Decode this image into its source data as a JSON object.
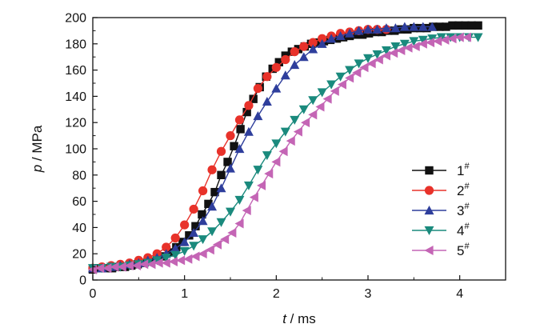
{
  "chart_data": {
    "type": "line",
    "title": "",
    "xlabel": {
      "var": "t",
      "unit": " / ms"
    },
    "ylabel": {
      "var": "p",
      "unit": " / MPa"
    },
    "xlim": [
      0,
      4.5
    ],
    "ylim": [
      0,
      200
    ],
    "xticks": [
      "0",
      "1",
      "2",
      "3",
      "4"
    ],
    "yticks": [
      "0",
      "20",
      "40",
      "60",
      "80",
      "100",
      "120",
      "140",
      "160",
      "180",
      "200"
    ],
    "grid": false,
    "legend_position": "right",
    "series": [
      {
        "name": "1",
        "sup": "#",
        "color": "#111111",
        "marker": "square",
        "x": [
          0.0,
          0.07,
          0.14,
          0.21,
          0.28,
          0.35,
          0.42,
          0.49,
          0.56,
          0.63,
          0.7,
          0.77,
          0.84,
          0.91,
          0.98,
          1.05,
          1.12,
          1.19,
          1.26,
          1.33,
          1.4,
          1.47,
          1.54,
          1.61,
          1.68,
          1.75,
          1.82,
          1.89,
          1.96,
          2.03,
          2.1,
          2.17,
          2.24,
          2.31,
          2.38,
          2.45,
          2.52,
          2.59,
          2.66,
          2.73,
          2.8,
          2.87,
          2.94,
          3.01,
          3.08,
          3.15,
          3.22,
          3.29,
          3.36,
          3.43,
          3.5,
          3.57,
          3.64,
          3.71,
          3.78,
          3.85,
          3.92,
          3.99,
          4.06,
          4.13,
          4.2
        ],
        "y": [
          8,
          9,
          9,
          9,
          10,
          10,
          11,
          12,
          13,
          14,
          16,
          18,
          21,
          25,
          29,
          34,
          41,
          50,
          58,
          67,
          80,
          90,
          102,
          115,
          128,
          138,
          147,
          155,
          161,
          166,
          171,
          174,
          176,
          178,
          180,
          181,
          182,
          183,
          184,
          185,
          186,
          187,
          187,
          188,
          189,
          189,
          190,
          190,
          191,
          191,
          192,
          192,
          192,
          193,
          193,
          193,
          194,
          194,
          194,
          194,
          194
        ]
      },
      {
        "name": "2",
        "sup": "#",
        "color": "#e8322a",
        "marker": "circle",
        "x": [
          0.0,
          0.1,
          0.2,
          0.3,
          0.4,
          0.5,
          0.6,
          0.7,
          0.8,
          0.9,
          1.0,
          1.1,
          1.2,
          1.3,
          1.4,
          1.5,
          1.6,
          1.7,
          1.8,
          1.9,
          2.0,
          2.1,
          2.2,
          2.3,
          2.4,
          2.5,
          2.6,
          2.7,
          2.8,
          2.9,
          3.0,
          3.1,
          3.2
        ],
        "y": [
          9,
          10,
          11,
          12,
          13,
          15,
          17,
          20,
          25,
          32,
          42,
          54,
          68,
          84,
          98,
          110,
          122,
          133,
          146,
          155,
          162,
          168,
          174,
          178,
          181,
          184,
          186,
          188,
          189,
          190,
          191,
          191,
          191
        ]
      },
      {
        "name": "3",
        "sup": "#",
        "color": "#2e3e9c",
        "marker": "triangle-up",
        "x": [
          0.0,
          0.1,
          0.2,
          0.3,
          0.4,
          0.5,
          0.6,
          0.7,
          0.8,
          0.9,
          1.0,
          1.1,
          1.2,
          1.3,
          1.4,
          1.5,
          1.6,
          1.7,
          1.8,
          1.9,
          2.0,
          2.1,
          2.2,
          2.3,
          2.4,
          2.5,
          2.6,
          2.7,
          2.8,
          2.9,
          3.0,
          3.1,
          3.2,
          3.3,
          3.4,
          3.5,
          3.6,
          3.7
        ],
        "y": [
          9,
          9,
          10,
          11,
          12,
          13,
          15,
          17,
          20,
          24,
          29,
          36,
          45,
          56,
          70,
          85,
          100,
          113,
          125,
          136,
          146,
          156,
          164,
          170,
          176,
          180,
          184,
          186,
          188,
          190,
          191,
          191,
          192,
          192,
          193,
          193,
          193,
          193
        ]
      },
      {
        "name": "4",
        "sup": "#",
        "color": "#1a8a7d",
        "marker": "triangle-down",
        "x": [
          0.0,
          0.1,
          0.2,
          0.3,
          0.4,
          0.5,
          0.6,
          0.7,
          0.8,
          0.9,
          1.0,
          1.1,
          1.2,
          1.3,
          1.4,
          1.5,
          1.6,
          1.7,
          1.8,
          1.9,
          2.0,
          2.1,
          2.2,
          2.3,
          2.4,
          2.5,
          2.6,
          2.7,
          2.8,
          2.9,
          3.0,
          3.1,
          3.2,
          3.3,
          3.4,
          3.5,
          3.6,
          3.7,
          3.8,
          3.9,
          4.0,
          4.1,
          4.2
        ],
        "y": [
          9,
          9,
          10,
          10,
          11,
          12,
          13,
          15,
          17,
          19,
          22,
          26,
          31,
          37,
          44,
          52,
          61,
          72,
          84,
          95,
          104,
          113,
          122,
          130,
          137,
          143,
          149,
          155,
          160,
          165,
          169,
          172,
          175,
          178,
          180,
          182,
          183,
          184,
          185,
          185,
          185,
          185,
          185
        ]
      },
      {
        "name": "5",
        "sup": "#",
        "color": "#c465b5",
        "marker": "triangle-left",
        "x": [
          0.0,
          0.08,
          0.16,
          0.24,
          0.32,
          0.4,
          0.48,
          0.56,
          0.64,
          0.72,
          0.8,
          0.88,
          0.96,
          1.04,
          1.12,
          1.2,
          1.28,
          1.36,
          1.44,
          1.52,
          1.6,
          1.68,
          1.76,
          1.84,
          1.92,
          2.0,
          2.08,
          2.16,
          2.24,
          2.32,
          2.4,
          2.48,
          2.56,
          2.64,
          2.72,
          2.8,
          2.88,
          2.96,
          3.04,
          3.12,
          3.2,
          3.28,
          3.36,
          3.44,
          3.52,
          3.6,
          3.68,
          3.76,
          3.84,
          3.92,
          4.0,
          4.08
        ],
        "y": [
          8,
          9,
          9,
          10,
          10,
          11,
          11,
          12,
          12,
          13,
          13,
          14,
          15,
          16,
          18,
          20,
          23,
          27,
          31,
          36,
          43,
          53,
          63,
          72,
          81,
          90,
          98,
          106,
          113,
          120,
          126,
          132,
          138,
          144,
          149,
          154,
          158,
          162,
          165,
          168,
          171,
          173,
          175,
          177,
          178,
          180,
          181,
          182,
          183,
          184,
          185,
          185
        ]
      }
    ]
  }
}
